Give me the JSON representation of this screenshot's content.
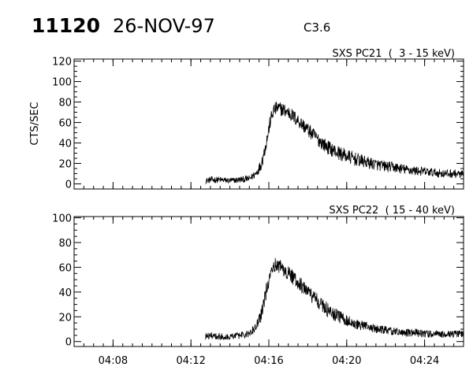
{
  "header": {
    "event_id": "11120",
    "date": "26-NOV-97",
    "flare_class": "C3.6"
  },
  "colors": {
    "foreground": "#000000",
    "background": "#ffffff"
  },
  "chart_data": [
    {
      "type": "line",
      "title": "SXS PC21  (  3 - 15 keV)",
      "ylabel": "CTS/SEC",
      "xlabel": "",
      "ylim": [
        -5,
        122
      ],
      "yticks": [
        0,
        20,
        40,
        60,
        80,
        100,
        120
      ],
      "xlim": [
        "04:06:00",
        "04:26:00"
      ],
      "xticks": [
        "04:08",
        "04:12",
        "04:16",
        "04:20",
        "04:24"
      ],
      "show_xtick_labels": false,
      "grid": false,
      "series": [
        {
          "x": [
            "04:12:45",
            "04:13:00",
            "04:13:30",
            "04:14:00",
            "04:14:30",
            "04:15:00",
            "04:15:20",
            "04:15:35",
            "04:15:45",
            "04:15:55",
            "04:16:05",
            "04:16:15",
            "04:16:25",
            "04:16:40",
            "04:17:00",
            "04:17:30",
            "04:18:00",
            "04:18:30",
            "04:19:00",
            "04:19:30",
            "04:20:00",
            "04:20:30",
            "04:21:00",
            "04:21:30",
            "04:22:00",
            "04:22:30",
            "04:23:00",
            "04:23:30",
            "04:24:00",
            "04:24:30",
            "04:25:00",
            "04:25:30",
            "04:26:00"
          ],
          "y": [
            3,
            4,
            4,
            3,
            4,
            5,
            10,
            18,
            30,
            45,
            62,
            72,
            74,
            73,
            70,
            62,
            53,
            44,
            36,
            31,
            27,
            24,
            21,
            19,
            17,
            16,
            14,
            13,
            12,
            11,
            10,
            10,
            9
          ],
          "noise": 7
        }
      ]
    },
    {
      "type": "line",
      "title": "SXS PC22  ( 15 - 40 keV)",
      "ylabel": "",
      "xlabel": "",
      "ylim": [
        -4,
        101
      ],
      "yticks": [
        0,
        20,
        40,
        60,
        80,
        100
      ],
      "xlim": [
        "04:06:00",
        "04:26:00"
      ],
      "xticks": [
        "04:08",
        "04:12",
        "04:16",
        "04:20",
        "04:24"
      ],
      "show_xtick_labels": true,
      "grid": false,
      "series": [
        {
          "x": [
            "04:12:45",
            "04:13:00",
            "04:13:30",
            "04:14:00",
            "04:14:30",
            "04:15:00",
            "04:15:20",
            "04:15:35",
            "04:15:45",
            "04:15:55",
            "04:16:05",
            "04:16:15",
            "04:16:25",
            "04:16:40",
            "04:17:00",
            "04:17:30",
            "04:18:00",
            "04:18:30",
            "04:19:00",
            "04:19:30",
            "04:20:00",
            "04:20:30",
            "04:21:00",
            "04:21:30",
            "04:22:00",
            "04:22:30",
            "04:23:00",
            "04:23:30",
            "04:24:00",
            "04:24:30",
            "04:25:00",
            "04:25:30",
            "04:26:00"
          ],
          "y": [
            4,
            5,
            4,
            4,
            5,
            6,
            12,
            20,
            32,
            44,
            56,
            62,
            62,
            60,
            55,
            48,
            40,
            33,
            26,
            21,
            17,
            14,
            12,
            10,
            9,
            8,
            7,
            7,
            6,
            6,
            6,
            6,
            6
          ],
          "noise": 6
        }
      ]
    }
  ]
}
